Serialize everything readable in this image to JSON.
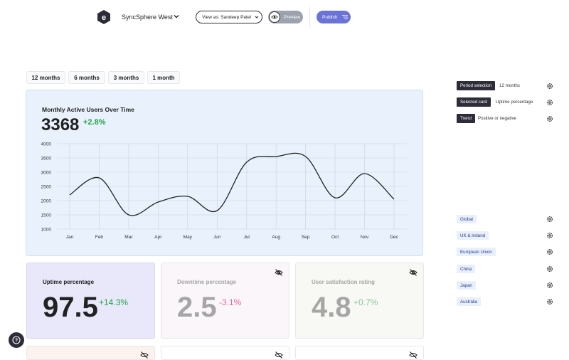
{
  "header": {
    "app_name": "SyncSphere West",
    "view_as_label": "View as: Sandeep Patel",
    "preview_label": "Preview",
    "publish_label": "Publish"
  },
  "period_tabs": [
    "12 months",
    "6 months",
    "3 months",
    "1 month"
  ],
  "chart_card": {
    "title": "Monthly Active Users Over Time",
    "value": "3368",
    "delta": "+2.8%"
  },
  "chart_data": {
    "type": "line",
    "title": "",
    "categories": [
      "Jan",
      "Feb",
      "Mar",
      "Apr",
      "May",
      "Jun",
      "Jul",
      "Aug",
      "Sep",
      "Oct",
      "Nov",
      "Dec"
    ],
    "values": [
      2200,
      2800,
      1500,
      1950,
      2150,
      1650,
      3350,
      3550,
      3550,
      2100,
      2950,
      2050
    ],
    "yticks": [
      "4000",
      "3500",
      "3000",
      "2500",
      "2000",
      "1500",
      "1000"
    ],
    "ylim": [
      1000,
      4000
    ],
    "xlabel": "",
    "ylabel": "",
    "grid": true,
    "line_color": "#222222",
    "grid_color": "#c9d3df"
  },
  "stats": [
    {
      "label": "Uptime percentage",
      "value": "97.5",
      "delta": "+14.3%",
      "hidden": false
    },
    {
      "label": "Downtime percentage",
      "value": "2.5",
      "delta": "-3.1%",
      "hidden": true
    },
    {
      "label": "User satisfaction rating",
      "value": "4.8",
      "delta": "+0.7%",
      "hidden": true
    }
  ],
  "right_panel": {
    "settings": [
      {
        "tag": "Period selection",
        "value": "12 months"
      },
      {
        "tag": "Selected card",
        "value": "Uptime percentage"
      },
      {
        "tag": "Trend",
        "value": "Positive or negative"
      }
    ],
    "regions": [
      "Global",
      "UK & Ireland",
      "European Union",
      "China",
      "Japan",
      "Australia"
    ]
  },
  "colors": {
    "accent": "#6b74d6",
    "positive": "#22a34a",
    "negative": "#e46aa0",
    "dark": "#2d2d3a"
  }
}
